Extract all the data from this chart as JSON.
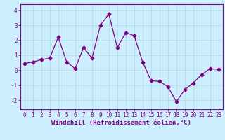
{
  "x": [
    0,
    1,
    2,
    3,
    4,
    5,
    6,
    7,
    8,
    9,
    10,
    11,
    12,
    13,
    14,
    15,
    16,
    17,
    18,
    19,
    20,
    21,
    22,
    23
  ],
  "y": [
    0.45,
    0.55,
    0.7,
    0.8,
    2.2,
    0.55,
    0.1,
    1.5,
    0.8,
    3.0,
    3.75,
    1.5,
    2.5,
    2.3,
    0.55,
    -0.7,
    -0.75,
    -1.1,
    -2.1,
    -1.3,
    -0.85,
    -0.3,
    0.1,
    0.05
  ],
  "line_color": "#800080",
  "marker": "D",
  "marker_size": 2.5,
  "line_width": 0.9,
  "bg_color": "#cceeff",
  "grid_color": "#aadddd",
  "ylabel_ticks": [
    -2,
    -1,
    0,
    1,
    2,
    3,
    4
  ],
  "xlabel_ticks": [
    0,
    1,
    2,
    3,
    4,
    5,
    6,
    7,
    8,
    9,
    10,
    11,
    12,
    13,
    14,
    15,
    16,
    17,
    18,
    19,
    20,
    21,
    22,
    23
  ],
  "xlabel": "Windchill (Refroidissement éolien,°C)",
  "ylim": [
    -2.6,
    4.4
  ],
  "xlim": [
    -0.5,
    23.5
  ],
  "tick_color": "#800080",
  "tick_fontsize": 5.5,
  "label_fontsize": 6.5
}
